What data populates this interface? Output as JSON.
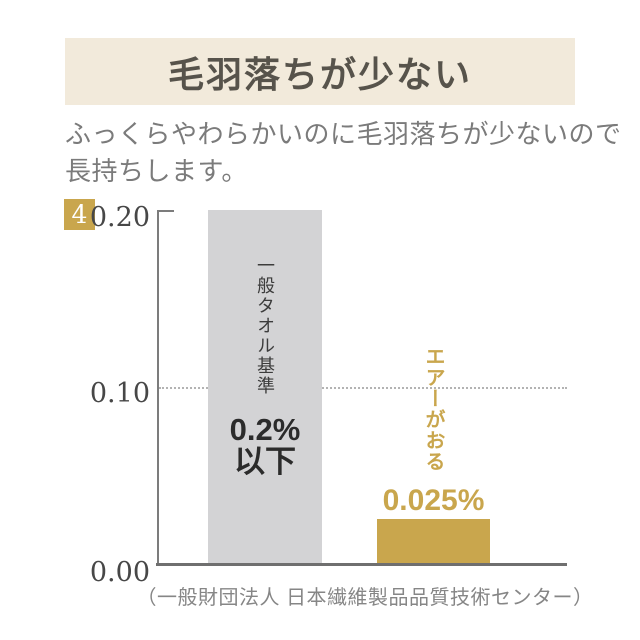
{
  "header": {
    "title": "毛羽落ちが少ない",
    "subtitle_line1": "ふっくらやわらかいのに毛羽落ちが少ないので",
    "subtitle_line2": "長持ちします。"
  },
  "badge": {
    "number": "4"
  },
  "chart": {
    "yticks": [
      "0.20",
      "0.10",
      "0.00"
    ],
    "bars": [
      {
        "label": "一般タオル基準",
        "value_label_line1": "0.2%",
        "value_label_line2": "以下"
      },
      {
        "label": "エアーがおる",
        "value_label": "0.025%"
      }
    ],
    "source": "（一般財団法人 日本繊維製品品質技術センター）"
  },
  "colors": {
    "banner_bg": "#F2EADB",
    "title_text": "#57534B",
    "subtitle_text": "#7B7B7B",
    "gold_accent": "#C9A64D",
    "gray_bar": "#D3D3D5",
    "axis_line": "#7C7C7C",
    "dotted_reference": "#B3B3B3",
    "caption_text": "#868686"
  },
  "chart_data": {
    "type": "bar",
    "title": "毛羽落ちが少ない",
    "categories": [
      "一般タオル基準",
      "エアーがおる"
    ],
    "values": [
      0.2,
      0.025
    ],
    "bar_value_labels": [
      "0.2%以下",
      "0.025%"
    ],
    "unit": "%",
    "ylim": [
      0,
      0.2
    ],
    "yticks": [
      0.0,
      0.1,
      0.2
    ],
    "reference_line_y": 0.1,
    "reference_line_style": "dotted",
    "grid": "off",
    "legend": "none",
    "bar_colors": [
      "#D3D3D5",
      "#C9A64D"
    ],
    "source": "（一般財団法人 日本繊維製品品質技術センター）"
  }
}
